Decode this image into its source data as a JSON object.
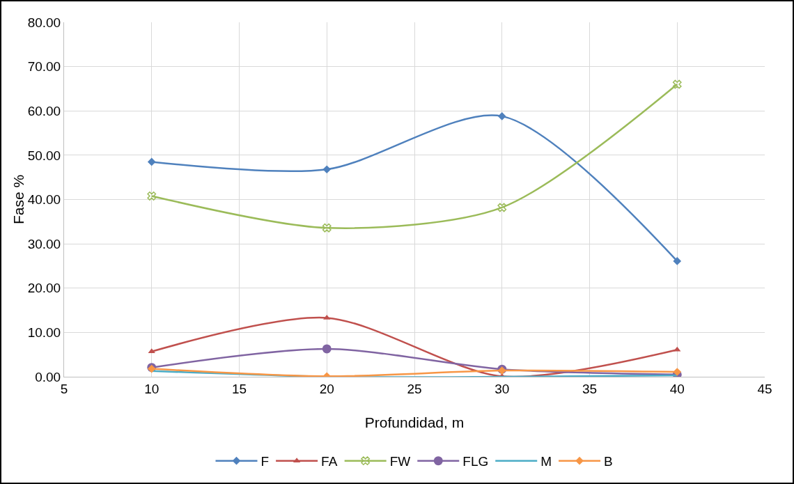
{
  "chart_data": {
    "type": "line",
    "xlabel": "Profundidad, m",
    "ylabel": "Fase %",
    "x": [
      10,
      20,
      30,
      40
    ],
    "series": [
      {
        "name": "F",
        "color": "#4f81bd",
        "marker": "diamond",
        "values": [
          48.5,
          46.8,
          58.8,
          26.1
        ]
      },
      {
        "name": "FA",
        "color": "#c0504d",
        "marker": "triangle",
        "values": [
          5.7,
          13.3,
          0.1,
          6.1
        ]
      },
      {
        "name": "FW",
        "color": "#9bbb59",
        "marker": "cross",
        "values": [
          40.8,
          33.6,
          38.2,
          66.0
        ]
      },
      {
        "name": "FLG",
        "color": "#8064a2",
        "marker": "circle",
        "values": [
          2.1,
          6.3,
          1.7,
          0.5
        ]
      },
      {
        "name": "M",
        "color": "#4bacc6",
        "marker": "none",
        "values": [
          1.3,
          0,
          0,
          0.3
        ]
      },
      {
        "name": "B",
        "color": "#f79646",
        "marker": "diamond",
        "values": [
          1.8,
          0.1,
          1.4,
          1.1
        ]
      }
    ],
    "xlim": [
      5,
      45
    ],
    "xticks": [
      5,
      10,
      15,
      20,
      25,
      30,
      35,
      40,
      45
    ],
    "ylim": [
      0,
      80
    ],
    "yticks": [
      {
        "value": 0,
        "label": "0.00"
      },
      {
        "value": 10,
        "label": "10.00"
      },
      {
        "value": 20,
        "label": "20.00"
      },
      {
        "value": 30,
        "label": "30.00"
      },
      {
        "value": 40,
        "label": "40.00"
      },
      {
        "value": 50,
        "label": "50.00"
      },
      {
        "value": 60,
        "label": "60.00"
      },
      {
        "value": 70,
        "label": "70.00"
      },
      {
        "value": 80,
        "label": "80.00"
      }
    ],
    "grid": true,
    "legend": "bottom",
    "line_style": "solid"
  }
}
